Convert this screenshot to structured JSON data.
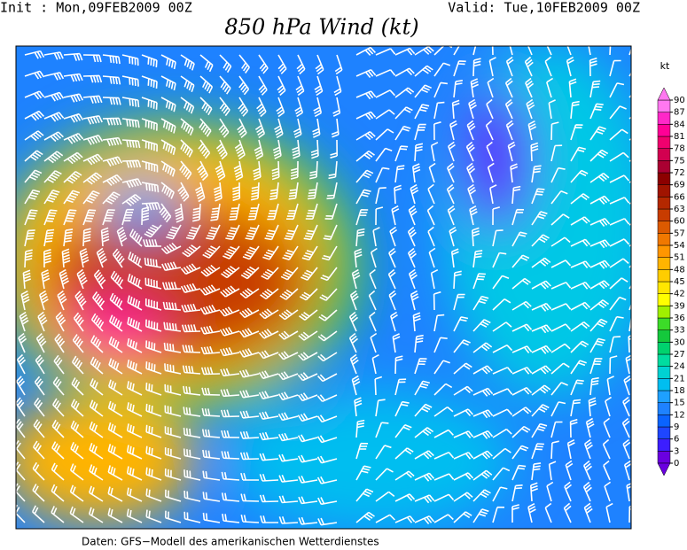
{
  "header": {
    "init": "Init : Mon,09FEB2009 00Z",
    "valid": "Valid: Tue,10FEB2009 00Z",
    "title": "850 hPa Wind (kt)"
  },
  "footer": "Daten: GFS−Modell des amerikanischen Wetterdienstes",
  "colorbar": {
    "unit": "kt",
    "levels": [
      0,
      3,
      6,
      9,
      12,
      15,
      18,
      21,
      24,
      27,
      30,
      33,
      36,
      39,
      42,
      45,
      48,
      51,
      54,
      57,
      60,
      63,
      66,
      69,
      72,
      75,
      78,
      81,
      84,
      87,
      90
    ],
    "colors": [
      "#6a00e0",
      "#3c1eff",
      "#1e46ff",
      "#0a64ff",
      "#1e82ff",
      "#1ea0ff",
      "#00bef0",
      "#00d2d2",
      "#00dca0",
      "#00d26e",
      "#14c83c",
      "#3cdc28",
      "#a0f000",
      "#ffff00",
      "#ffe600",
      "#ffcd00",
      "#ffb400",
      "#ff9600",
      "#f07800",
      "#dc5a00",
      "#c83c00",
      "#b42800",
      "#a01400",
      "#8c0000",
      "#aa0032",
      "#d20050",
      "#f0006e",
      "#ff0096",
      "#ff28c8",
      "#ff78f0"
    ]
  }
}
